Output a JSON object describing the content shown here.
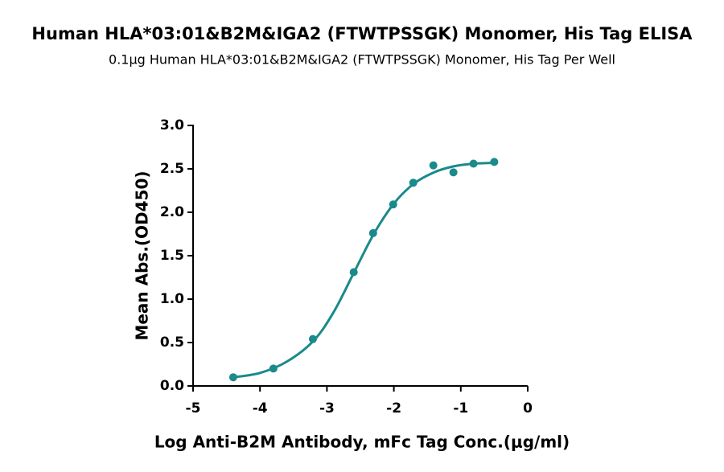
{
  "chart_data": {
    "type": "scatter",
    "title": "Human HLA*03:01&B2M&IGA2 (FTWTPSSGK) Monomer, His Tag ELISA",
    "subtitle": "0.1μg Human HLA*03:01&B2M&IGA2 (FTWTPSSGK) Monomer, His Tag Per Well",
    "x_label": "Log Anti-B2M Antibody, mFc Tag Conc.(μg/ml)",
    "y_label": "Mean Abs.(OD450)",
    "color": "#1a8a8a",
    "x": [
      -4.4,
      -3.8,
      -3.21,
      -2.6,
      -2.31,
      -2.01,
      -1.71,
      -1.41,
      -1.11,
      -0.81,
      -0.5
    ],
    "values": [
      0.1,
      0.2,
      0.54,
      1.31,
      1.76,
      2.09,
      2.34,
      2.54,
      2.46,
      2.56,
      2.58
    ],
    "fit_x": [
      -4.4,
      -4.0,
      -3.6,
      -3.2,
      -2.9,
      -2.6,
      -2.3,
      -2.0,
      -1.7,
      -1.4,
      -1.1,
      -0.8,
      -0.5
    ],
    "fit_values": [
      0.1,
      0.15,
      0.28,
      0.52,
      0.85,
      1.3,
      1.75,
      2.1,
      2.33,
      2.46,
      2.53,
      2.56,
      2.57
    ],
    "xlim": [
      -5,
      0
    ],
    "xticks": [
      -5,
      -4,
      -3,
      -2,
      -1,
      0
    ],
    "ylim": [
      0,
      3
    ],
    "yticks": [
      {
        "value": 0,
        "label": "0.0"
      },
      0.5,
      {
        "value": 1,
        "label": "1.0"
      },
      1.5,
      {
        "value": 2,
        "label": "2.0"
      },
      2.5,
      {
        "value": 3,
        "label": "3.0"
      }
    ]
  }
}
